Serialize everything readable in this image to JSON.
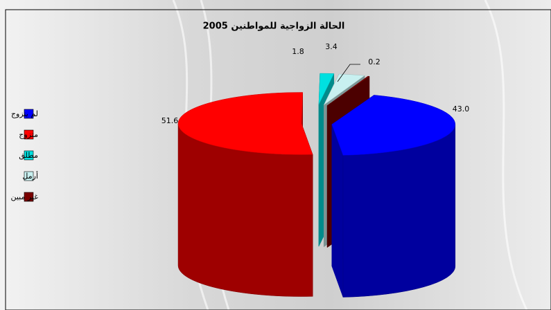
{
  "chart_data": {
    "type": "pie3d",
    "title": "الحالة الزواجية للمواطنين 2005",
    "categories": [
      "لم يتزوج",
      "متزوج",
      "مطلق",
      "أرمل",
      "غير مبين"
    ],
    "values": [
      43.0,
      51.6,
      1.8,
      3.4,
      0.2
    ],
    "value_labels": [
      "43.0",
      "51.6",
      "1.8",
      "3.4",
      "0.2"
    ],
    "colors": [
      "#0000ff",
      "#ff0000",
      "#00e0e0",
      "#c8f0f0",
      "#7a0000"
    ],
    "legend": "left"
  }
}
